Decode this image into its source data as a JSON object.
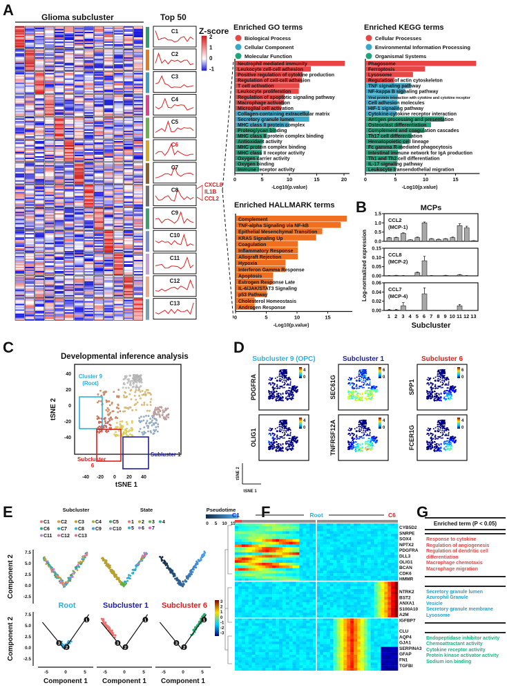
{
  "panels": {
    "A": "A",
    "B": "B",
    "C": "C",
    "D": "D",
    "E": "E",
    "F": "F",
    "G": "G"
  },
  "panelA": {
    "heatmap_title": "Glioma subcluster",
    "top50_title": "Top 50",
    "zscore_title": "Z-score",
    "zscore_ticks": [
      "2",
      "1",
      "0",
      "-1"
    ],
    "clusters": [
      "C1",
      "C2",
      "C3",
      "C4",
      "C5",
      "C6",
      "C7",
      "C8",
      "C9",
      "C10",
      "C11",
      "C12",
      "C13"
    ],
    "cluster_colors": [
      "#2e9e6e",
      "#e07b22",
      "#3aa0c8",
      "#e0408f",
      "#6ab04c",
      "#d9a522",
      "#8b5e2b",
      "#6f6f6f",
      "#3aa06e",
      "#7a8fd0",
      "#c9a0dc",
      "#e9a98a",
      "#7d9fb4"
    ],
    "c6_genes": [
      "CXCL8",
      "IL1B",
      "CCL2"
    ]
  },
  "colors": {
    "bp": "#e84545",
    "cc": "#3aa8c8",
    "mf": "#1fa37a",
    "hallmark": "#f07020",
    "mcp_bar": "#a0a0a0",
    "root": "#2ab0e0",
    "sub1": "#1c1ca8",
    "sub6": "#e01c1c"
  },
  "chart_data": [
    {
      "id": "go",
      "type": "bar",
      "orientation": "horizontal",
      "title": "Enriched GO terms",
      "xlabel": "-Log10(p.value)",
      "xlim": [
        0,
        21
      ],
      "xticks": [
        0,
        5,
        10,
        15,
        20
      ],
      "legend": [
        {
          "label": "Biological Process",
          "color": "#e84545"
        },
        {
          "label": "Cellular Component",
          "color": "#3aa8c8"
        },
        {
          "label": "Molecular Function",
          "color": "#1fa37a"
        }
      ],
      "categories": [
        "Neutrophil mediated immunity",
        "Leukocyte cell-cell adhesion",
        "Positive regulation of cytokine production",
        "Regulation of cell-cell adhesion",
        "T cell activation",
        "Leukocyte proliferation",
        "Regulation of apoptotic signaling pathway",
        "Macrophage activation",
        "Microglial cell activation",
        "Collagen-containing extracellular matrix",
        "Secretory granule lumen",
        "MHC class II protein complex",
        "Proteoglycan binding",
        "MHC class II protein complex binding",
        "Antioxidant activity",
        "MHC protein complex binding",
        "MHC class II receptor activity",
        "Oxygen carrier activity",
        "Oxygen binding",
        "Immune receptor activity"
      ],
      "values": [
        20,
        13.8,
        12.3,
        12.2,
        11.7,
        11.6,
        9,
        8.9,
        8.4,
        13.5,
        13.5,
        9.8,
        7.4,
        5.8,
        5,
        4.8,
        4.8,
        4.3,
        4.3,
        4.3
      ],
      "groups": [
        0,
        0,
        0,
        0,
        0,
        0,
        0,
        0,
        0,
        1,
        1,
        1,
        2,
        2,
        2,
        2,
        2,
        2,
        2,
        2
      ]
    },
    {
      "id": "kegg",
      "type": "bar",
      "orientation": "horizontal",
      "title": "Enriched KEGG terms",
      "xlabel": "-Log10(p.value)",
      "xlim": [
        0,
        19
      ],
      "xticks": [
        0,
        5,
        10,
        15
      ],
      "legend": [
        {
          "label": "Cellular Processes",
          "color": "#e84545"
        },
        {
          "label": "Environmental Information Processing",
          "color": "#3aa8c8"
        },
        {
          "label": "Organismal Systems",
          "color": "#1fa37a"
        }
      ],
      "categories": [
        "Phagosome",
        "Ferroptosis",
        "Lysosome",
        "Regulation of actin cytoskeleton",
        "TNF signaling pathway",
        "NF-kappa B signaling pathway",
        "Viral protein interaction with cytokine and cytokine receptor",
        "Cell adhesion molecules",
        "HIF-1 signaling pathway",
        "Cytokine-cytokine receptor interaction",
        "Antigen processing and presentation",
        "Osteoclast differentiation",
        "Complement and coagulation cascades",
        "Th17 cell differentiation",
        "Hematopoietic cell lineage",
        "Fc gamma R-mediated phagocytosis",
        "Intestinal immune network for IgA production",
        "Th1 and Th2 cell differentiation",
        "IL-17 signaling pathway",
        "Leukocyte transendothelial migration"
      ],
      "values": [
        18.3,
        9.8,
        7.8,
        4.7,
        7.5,
        6.5,
        5.3,
        5.2,
        5.5,
        5,
        13,
        10.8,
        9.7,
        7.6,
        7.2,
        6,
        5.3,
        5.3,
        5.2,
        5
      ],
      "groups": [
        0,
        0,
        0,
        0,
        1,
        1,
        1,
        1,
        1,
        1,
        2,
        2,
        2,
        2,
        2,
        2,
        2,
        2,
        2,
        2
      ]
    },
    {
      "id": "hallmark",
      "type": "bar",
      "orientation": "horizontal",
      "title": "Enriched HALLMARK terms",
      "xlabel": "-Log10(p.value)",
      "xlim": [
        0,
        19
      ],
      "xticks": [
        0,
        5,
        10,
        15
      ],
      "categories": [
        "Complement",
        "TNF-alpha Signaling via NF-kB",
        "Epithelial Mesenchymal Transition",
        "KRAS Signaling Up",
        "Coagulation",
        "Inflammatory Response",
        "Allograft Rejection",
        "Hypoxia",
        "Interferon Gamma Response",
        "Apoptosis",
        "Estrogen Response Late",
        "IL-6/JAK/STAT3 Signaling",
        "p53 Pathway",
        "Cholesterol Homeostasis",
        "Androgen Response"
      ],
      "values": [
        18,
        17,
        14,
        13,
        10,
        10,
        10,
        8,
        8,
        6,
        6,
        5,
        5,
        3,
        3
      ]
    },
    {
      "id": "mcps",
      "type": "bar",
      "title": "MCPs",
      "xlabel": "Subcluster",
      "ylabel": "Log-normalized expression",
      "categories": [
        "1",
        "2",
        "3",
        "4",
        "5",
        "6",
        "7",
        "8",
        "9",
        "10",
        "11",
        "12",
        "13"
      ],
      "series": [
        {
          "name": "CCL2",
          "subname": "(MCP-1)",
          "ylim": [
            0,
            1.5
          ],
          "yticks": [
            "0.0",
            "0.5",
            "1.0",
            "1.5"
          ],
          "values": [
            0.19,
            0.2,
            0.43,
            0.08,
            0.2,
            1.0,
            0.13,
            0.1,
            0.13,
            0.2,
            0.85,
            0.73,
            0.03
          ],
          "errors": [
            0.02,
            0.02,
            0.03,
            0.01,
            0.03,
            0.05,
            0.02,
            0.02,
            0.02,
            0.03,
            0.1,
            0.09,
            0.01
          ]
        },
        {
          "name": "CCL8",
          "subname": "(MCP-2)",
          "ylim": [
            0,
            0.15
          ],
          "yticks": [
            "0.00",
            "0.05",
            "0.10",
            "0.15"
          ],
          "values": [
            0.001,
            0.002,
            0.001,
            0,
            0.018,
            0.082,
            0.001,
            0,
            0.002,
            0,
            0.005,
            0.001,
            0
          ],
          "errors": [
            0.001,
            0.001,
            0.001,
            0,
            0.003,
            0.024,
            0.001,
            0,
            0.001,
            0,
            0.002,
            0.001,
            0
          ]
        },
        {
          "name": "CCL7",
          "subname": "(MCP-4)",
          "ylim": [
            0,
            0.06
          ],
          "yticks": [
            "0.00",
            "0.02",
            "0.04",
            "0.06"
          ],
          "values": [
            0.001,
            0.001,
            0.01,
            0,
            0,
            0.036,
            0,
            0,
            0,
            0,
            0.01,
            0,
            0
          ],
          "errors": [
            0.001,
            0.001,
            0.007,
            0,
            0,
            0.013,
            0,
            0,
            0,
            0,
            0.003,
            0,
            0
          ]
        }
      ]
    }
  ],
  "panelC": {
    "title": "Developmental inference analysis",
    "xlabel": "tSNE 1",
    "ylabel": "tSNE 2",
    "xticks": [
      "-40",
      "-20",
      "0",
      "20",
      "40"
    ],
    "yticks": [
      "40",
      "20",
      "0",
      "-20",
      "-40"
    ],
    "root_label": "Cluster 9",
    "root_sub": "(Root)",
    "sub6_label": "Subcluster",
    "sub6_num": "6",
    "sub1_label": "Subluster 1"
  },
  "panelD": {
    "titles": [
      "Subcluster 9 (OPC)",
      "Subcluster 1",
      "Subcluster 6"
    ],
    "genes": [
      {
        "name": "PDGFRA",
        "max": "4",
        "min": "0"
      },
      {
        "name": "SEC61G",
        "max": "6",
        "min": "0"
      },
      {
        "name": "SPP1",
        "max": "6",
        "min": "0"
      },
      {
        "name": "OLIG1",
        "max": "4",
        "min": "0"
      },
      {
        "name": "TNFRSF12A",
        "max": "4",
        "min": "0"
      },
      {
        "name": "FCER1G",
        "max": "4",
        "min": "0"
      }
    ],
    "axis_x": "tSNE 1",
    "axis_y": "tSNE 2"
  },
  "panelE": {
    "legend_titles": [
      "Subcluster",
      "State",
      "Pseudotime"
    ],
    "subclusters": [
      "C1",
      "C2",
      "C3",
      "C4",
      "C5",
      "C6",
      "C7",
      "C8",
      "C9",
      "C10",
      "C11",
      "C12",
      "C13"
    ],
    "sub_colors": [
      "#e07a7a",
      "#d99a3a",
      "#b8a030",
      "#9db23a",
      "#3aa860",
      "#2aa888",
      "#2ab0a8",
      "#2ab8c8",
      "#3aa0e0",
      "#8a90e0",
      "#c080e0",
      "#e070c0",
      "#e07090"
    ],
    "states": [
      "1",
      "2",
      "3",
      "4",
      "5",
      "6",
      "7"
    ],
    "state_colors": [
      "#e07a7a",
      "#b8a030",
      "#5ab040",
      "#2ab0a0",
      "#2ab0d0",
      "#a080e0",
      "#e060c0"
    ],
    "pseudotime_ticks": [
      "0",
      "5",
      "10",
      "15"
    ],
    "bottom_titles": [
      "Root",
      "Subcluster 1",
      "Subcluster 6"
    ],
    "yticks": [
      "7.5",
      "5.0",
      "2.5",
      "0.0",
      "-2.5"
    ],
    "xticks": [
      "-5",
      "0",
      "5"
    ],
    "xlabel": "Component 1",
    "ylabel": "Component 2",
    "nodes": [
      "1",
      "2",
      "3"
    ]
  },
  "panelF": {
    "left": "C1",
    "middle": "Root",
    "right": "C6",
    "scale": [
      "3",
      "2",
      "1",
      "0",
      "-1",
      "-2",
      "-3"
    ],
    "genes1": [
      "CYB5D2",
      "SNRPE",
      "SOX4",
      "NPTX2",
      "PDGFRA",
      "DLL3",
      "OLIG1",
      "BCAN",
      "CDK6",
      "HMMR"
    ],
    "genes2": [
      "NTRK2",
      "BST2",
      "ANXA1",
      "S100A10",
      "A2M",
      "IGFBP7"
    ],
    "genes3": [
      "CLU",
      "AQP4",
      "GJA1",
      "SERPINA3",
      "GFAP",
      "FN1",
      "TGFBI"
    ]
  },
  "panelG": {
    "header": "Enriched term (P < 0.05)",
    "group1": [
      "Response to cytokine",
      "Regulation of angiogenesis",
      "Regulation of dendritic cell differentiation",
      "Macrophage chemotaxis",
      "Macrophage migration"
    ],
    "group2": [
      "Secretory granule lumen",
      "Azurophil Granule",
      "Vesicle",
      "Secretory granule membrane",
      "Lysosome"
    ],
    "group3": [
      "Endopeptidase inhibitor activity",
      "Chemoattractant activity",
      "Cytokine receptor activity",
      "Protein kinase activator activity",
      "Sodium ion binding"
    ],
    "colors": [
      "#e04848",
      "#2a9ec8",
      "#1fb080"
    ]
  }
}
